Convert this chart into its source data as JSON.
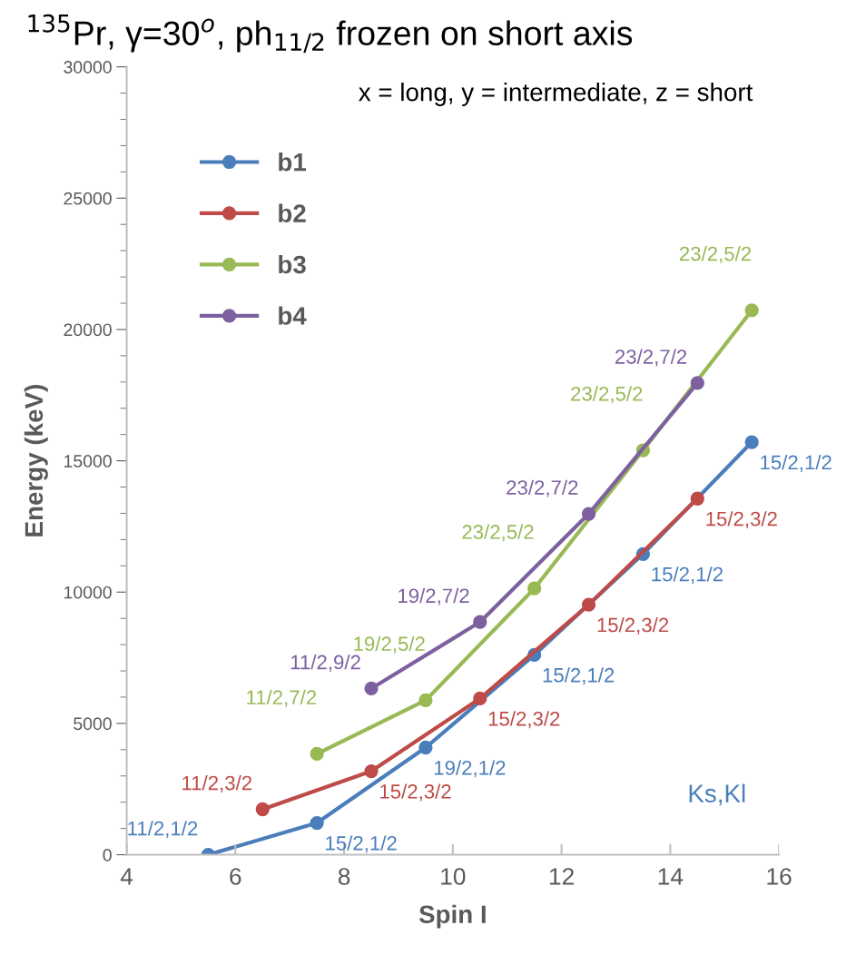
{
  "chart_data": {
    "type": "line",
    "title": "$^{135}$Pr, γ=30$^{o}$, ph$_{11/2}$ frozen on short axis",
    "xlabel": "Spin I",
    "ylabel": "Energy (keV)",
    "xlim": [
      4,
      16
    ],
    "xticks": [
      4,
      6,
      8,
      10,
      12,
      14,
      16
    ],
    "ylim": [
      0,
      30000
    ],
    "yticks": [
      0,
      5000,
      10000,
      15000,
      20000,
      25000,
      30000
    ],
    "grid": false,
    "legend": "top left",
    "marker": "circle",
    "line_style": "solid",
    "annotations": [
      "x = long, y = intermediate, z = short",
      "Ks,Kl"
    ],
    "series": [
      {
        "name": "b1",
        "color": "#4a7ebb",
        "x": [
          5.5,
          7.5,
          9.5,
          11.5,
          13.5,
          15.5
        ],
        "values": [
          0,
          1210,
          4080,
          7610,
          11450,
          15710
        ],
        "value_labels": [
          "11/2,1/2",
          "15/2,1/2",
          "19/2,1/2",
          "15/2,1/2",
          "15/2,1/2",
          "15/2,1/2"
        ]
      },
      {
        "name": "b2",
        "color": "#be4b48",
        "x": [
          6.5,
          8.5,
          10.5,
          12.5,
          14.5
        ],
        "values": [
          1730,
          3180,
          5950,
          9520,
          13560
        ],
        "value_labels": [
          "11/2,3/2",
          "15/2,3/2",
          "15/2,3/2",
          "15/2,3/2",
          "15/2,3/2"
        ]
      },
      {
        "name": "b3",
        "color": "#98b954",
        "x": [
          7.5,
          9.5,
          11.5,
          13.5,
          15.5
        ],
        "values": [
          3840,
          5880,
          10140,
          15400,
          20730
        ],
        "value_labels": [
          "11/2,7/2",
          "19/2,5/2",
          "23/2,5/2",
          "23/2,5/2",
          "23/2,5/2"
        ]
      },
      {
        "name": "b4",
        "color": "#7d60a0",
        "x": [
          8.5,
          10.5,
          12.5,
          14.5
        ],
        "values": [
          6330,
          8860,
          12980,
          17960
        ],
        "value_labels": [
          "11/2,9/2",
          "19/2,7/2",
          "23/2,7/2",
          "23/2,7/2"
        ]
      }
    ]
  }
}
